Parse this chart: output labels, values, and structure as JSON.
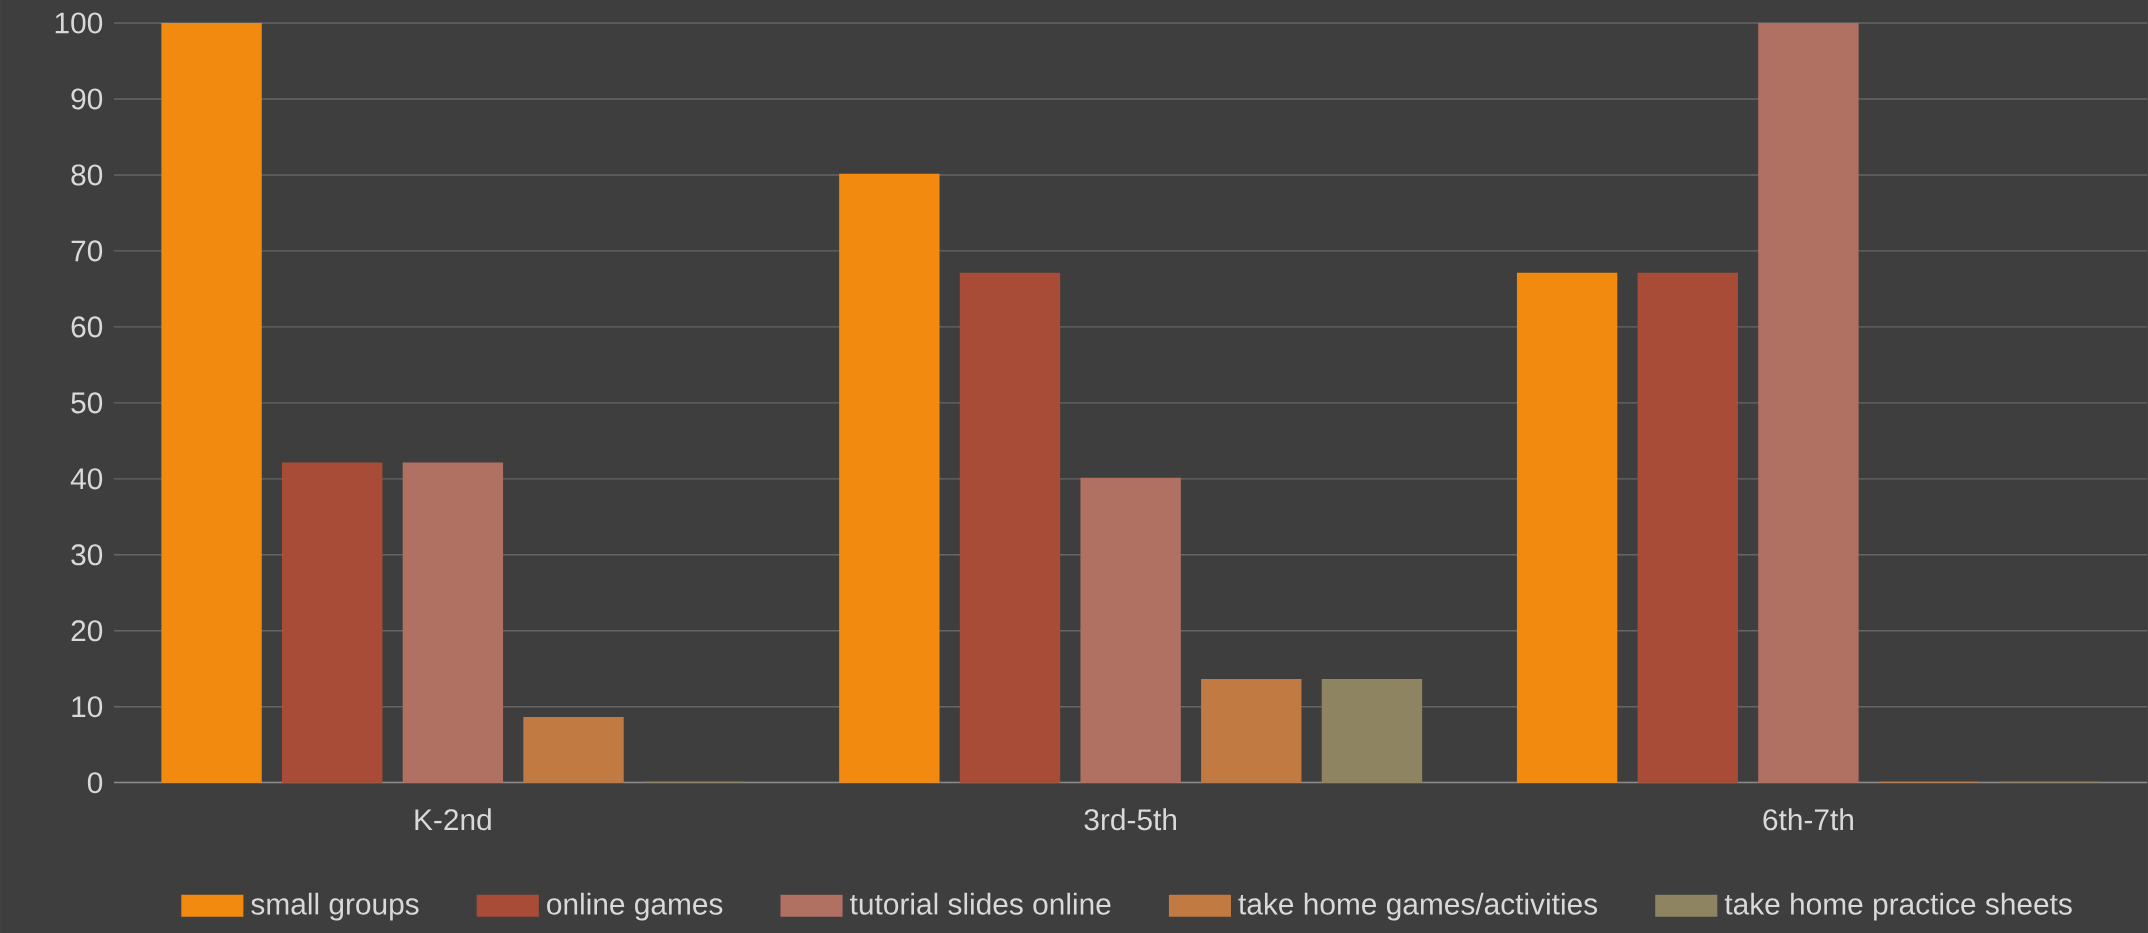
{
  "chart_data": {
    "type": "bar",
    "categories": [
      "K-2nd",
      "3rd-5th",
      "6th-7th"
    ],
    "series": [
      {
        "name": "small groups",
        "color": "#f28a10",
        "values": [
          100,
          80,
          67
        ]
      },
      {
        "name": "online games",
        "color": "#a84c38",
        "values": [
          42,
          67,
          67
        ]
      },
      {
        "name": "tutorial slides online",
        "color": "#b07062",
        "values": [
          42,
          40,
          100
        ]
      },
      {
        "name": "take home games/activities",
        "color": "#c07a42",
        "values": [
          8.5,
          13.5,
          0
        ]
      },
      {
        "name": "take home practice sheets",
        "color": "#8f8462",
        "values": [
          0,
          13.5,
          0
        ]
      }
    ],
    "ylim": [
      0,
      100
    ],
    "yticks": [
      0,
      10,
      20,
      30,
      40,
      50,
      60,
      70,
      80,
      90,
      100
    ],
    "grid": "y",
    "legend": "bottom"
  }
}
